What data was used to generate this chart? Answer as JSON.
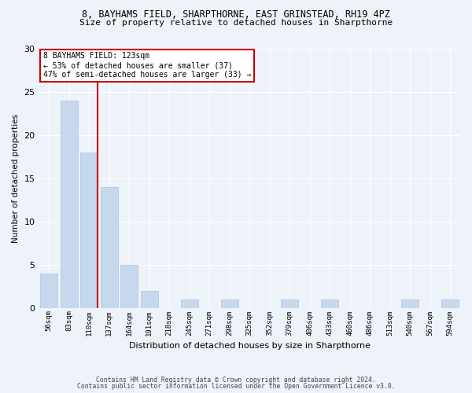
{
  "title_line1": "8, BAYHAMS FIELD, SHARPTHORNE, EAST GRINSTEAD, RH19 4PZ",
  "title_line2": "Size of property relative to detached houses in Sharpthorne",
  "xlabel": "Distribution of detached houses by size in Sharpthorne",
  "ylabel": "Number of detached properties",
  "bar_labels": [
    "56sqm",
    "83sqm",
    "110sqm",
    "137sqm",
    "164sqm",
    "191sqm",
    "218sqm",
    "245sqm",
    "271sqm",
    "298sqm",
    "325sqm",
    "352sqm",
    "379sqm",
    "406sqm",
    "433sqm",
    "460sqm",
    "486sqm",
    "513sqm",
    "540sqm",
    "567sqm",
    "594sqm"
  ],
  "bar_values": [
    4,
    24,
    18,
    14,
    5,
    2,
    0,
    1,
    0,
    1,
    0,
    0,
    1,
    0,
    1,
    0,
    0,
    0,
    1,
    0,
    1
  ],
  "bar_color": "#c5d8ed",
  "bar_edge_color": "#adc4de",
  "ylim": [
    0,
    30
  ],
  "yticks": [
    0,
    5,
    10,
    15,
    20,
    25,
    30
  ],
  "property_line_index": 2,
  "property_line_color": "#cc0000",
  "annotation_text": "8 BAYHAMS FIELD: 123sqm\n← 53% of detached houses are smaller (37)\n47% of semi-detached houses are larger (33) →",
  "annotation_box_color": "#ffffff",
  "annotation_box_edge_color": "#cc0000",
  "footnote_line1": "Contains HM Land Registry data © Crown copyright and database right 2024.",
  "footnote_line2": "Contains public sector information licensed under the Open Government Licence v3.0.",
  "background_color": "#eef2f9",
  "plot_bg_color": "#eef2f9",
  "grid_color": "#ffffff"
}
